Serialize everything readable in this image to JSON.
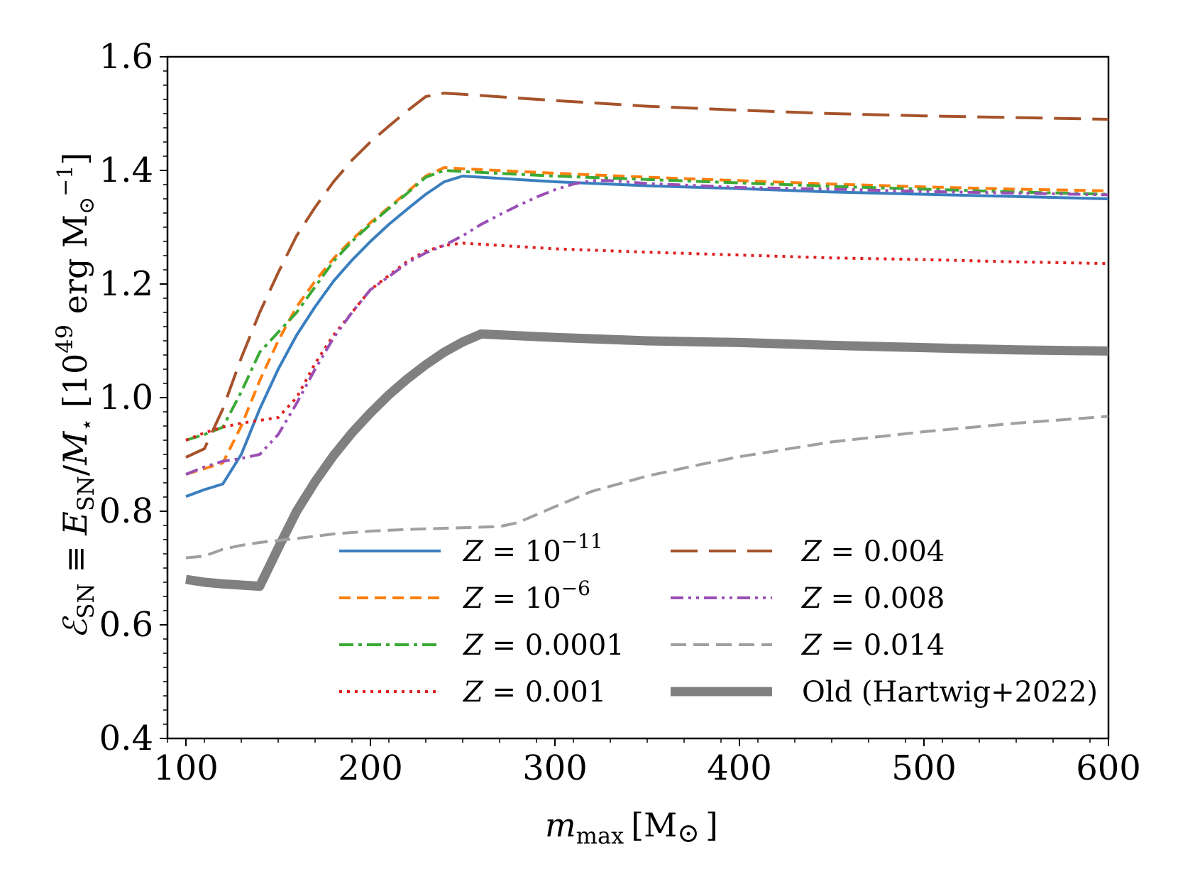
{
  "chart_data": {
    "type": "line",
    "title": "",
    "xlabel": "m_max [M⊙]",
    "xlabel_parts": {
      "var": "m",
      "sub": "max",
      "unit": "[M",
      "sun": "⊙",
      "close": "]"
    },
    "ylabel": "ℰ_SN ≡ E_SN/M⋆ [10^49 erg M⊙^−1]",
    "ylabel_parts": {
      "script_e": "ℰ",
      "sub1": "SN",
      "equiv": " ≡ ",
      "var_e": "E",
      "sub2": "SN",
      "slash": "/",
      "var_m": "M",
      "star": "⋆",
      "unit_open": "  [10",
      "exp49": "49",
      "unit_mid": " erg M",
      "sun": "⊙",
      "exp_neg1": "−1",
      "unit_close": "]"
    },
    "xlim": [
      90,
      600
    ],
    "ylim": [
      0.4,
      1.6
    ],
    "xticks": [
      100,
      200,
      300,
      400,
      500,
      600
    ],
    "xtick_labels": [
      "100",
      "200",
      "300",
      "400",
      "500",
      "600"
    ],
    "yticks": [
      0.4,
      0.6,
      0.8,
      1.0,
      1.2,
      1.4,
      1.6
    ],
    "ytick_labels": [
      "0.4",
      "0.6",
      "0.8",
      "1.0",
      "1.2",
      "1.4",
      "1.6"
    ],
    "grid": false,
    "legend_position": "lower-center",
    "series": [
      {
        "name": "Z = 10^−11",
        "label": {
          "z": "Z",
          "eq": " = ",
          "base": "10",
          "exp": "−11",
          "rest": ""
        },
        "color": "#3a7ebf",
        "style": "solid",
        "x": [
          100,
          110,
          120,
          130,
          140,
          150,
          160,
          170,
          180,
          190,
          200,
          210,
          220,
          230,
          240,
          250,
          300,
          350,
          400,
          450,
          500,
          550,
          600
        ],
        "y": [
          0.826,
          0.838,
          0.848,
          0.9,
          0.98,
          1.05,
          1.11,
          1.16,
          1.205,
          1.242,
          1.275,
          1.305,
          1.332,
          1.358,
          1.38,
          1.39,
          1.38,
          1.373,
          1.368,
          1.362,
          1.358,
          1.354,
          1.35
        ]
      },
      {
        "name": "Z = 10^−6",
        "label": {
          "z": "Z",
          "eq": " = ",
          "base": "10",
          "exp": "−6",
          "rest": ""
        },
        "color": "#ff7f0e",
        "style": "dashed",
        "x": [
          100,
          110,
          120,
          130,
          140,
          150,
          160,
          170,
          180,
          190,
          200,
          210,
          220,
          230,
          240,
          250,
          300,
          350,
          400,
          450,
          500,
          550,
          600
        ],
        "y": [
          0.865,
          0.875,
          0.885,
          0.95,
          1.03,
          1.1,
          1.16,
          1.205,
          1.245,
          1.278,
          1.308,
          1.335,
          1.362,
          1.39,
          1.405,
          1.403,
          1.395,
          1.388,
          1.382,
          1.376,
          1.371,
          1.367,
          1.364
        ]
      },
      {
        "name": "Z = 0.0001",
        "label": {
          "z": "Z",
          "eq": " = ",
          "base": "0.0001",
          "exp": "",
          "rest": ""
        },
        "color": "#3aaa35",
        "style": "dashdot",
        "x": [
          100,
          110,
          120,
          130,
          140,
          150,
          160,
          170,
          180,
          190,
          200,
          210,
          220,
          230,
          240,
          250,
          300,
          350,
          400,
          450,
          500,
          550,
          600
        ],
        "y": [
          0.925,
          0.935,
          0.948,
          1.01,
          1.08,
          1.115,
          1.15,
          1.195,
          1.24,
          1.275,
          1.305,
          1.333,
          1.36,
          1.388,
          1.4,
          1.398,
          1.39,
          1.384,
          1.378,
          1.372,
          1.367,
          1.362,
          1.358
        ]
      },
      {
        "name": "Z = 0.001",
        "label": {
          "z": "Z",
          "eq": " = ",
          "base": "0.001",
          "exp": "",
          "rest": ""
        },
        "color": "#e02020",
        "style": "dotted",
        "x": [
          100,
          110,
          120,
          130,
          140,
          150,
          160,
          170,
          180,
          190,
          200,
          210,
          220,
          230,
          240,
          250,
          300,
          350,
          400,
          450,
          500,
          550,
          600
        ],
        "y": [
          0.925,
          0.938,
          0.948,
          0.955,
          0.96,
          0.965,
          1.0,
          1.06,
          1.11,
          1.15,
          1.19,
          1.215,
          1.24,
          1.258,
          1.268,
          1.272,
          1.262,
          1.256,
          1.251,
          1.246,
          1.243,
          1.239,
          1.236
        ]
      },
      {
        "name": "Z = 0.004",
        "label": {
          "z": "Z",
          "eq": " = ",
          "base": "0.004",
          "exp": "",
          "rest": ""
        },
        "color": "#a6532b",
        "style": "longdash",
        "x": [
          100,
          110,
          120,
          130,
          140,
          150,
          160,
          170,
          180,
          190,
          200,
          210,
          220,
          230,
          240,
          250,
          300,
          350,
          400,
          450,
          500,
          550,
          600
        ],
        "y": [
          0.895,
          0.91,
          0.98,
          1.07,
          1.15,
          1.22,
          1.285,
          1.335,
          1.38,
          1.418,
          1.45,
          1.478,
          1.505,
          1.53,
          1.536,
          1.534,
          1.523,
          1.513,
          1.506,
          1.5,
          1.496,
          1.493,
          1.49
        ]
      },
      {
        "name": "Z = 0.008",
        "label": {
          "z": "Z",
          "eq": " = ",
          "base": "0.008",
          "exp": "",
          "rest": ""
        },
        "color": "#9a4fb5",
        "style": "dashdotdot",
        "x": [
          100,
          110,
          120,
          130,
          140,
          150,
          160,
          170,
          180,
          190,
          200,
          210,
          220,
          230,
          240,
          250,
          260,
          270,
          280,
          290,
          300,
          310,
          320,
          330,
          350,
          400,
          450,
          500,
          550,
          600
        ],
        "y": [
          0.865,
          0.878,
          0.888,
          0.893,
          0.9,
          0.935,
          0.99,
          1.05,
          1.105,
          1.15,
          1.19,
          1.213,
          1.237,
          1.255,
          1.268,
          1.285,
          1.305,
          1.322,
          1.338,
          1.353,
          1.366,
          1.376,
          1.382,
          1.382,
          1.377,
          1.37,
          1.367,
          1.363,
          1.36,
          1.357
        ]
      },
      {
        "name": "Z = 0.014",
        "label": {
          "z": "Z",
          "eq": " = ",
          "base": "0.014",
          "exp": "",
          "rest": ""
        },
        "color": "#a0a0a0",
        "style": "dashed-gray",
        "x": [
          100,
          110,
          120,
          130,
          140,
          160,
          180,
          200,
          220,
          240,
          260,
          270,
          280,
          300,
          320,
          350,
          380,
          400,
          450,
          500,
          550,
          600
        ],
        "y": [
          0.718,
          0.721,
          0.733,
          0.74,
          0.745,
          0.752,
          0.76,
          0.765,
          0.768,
          0.77,
          0.772,
          0.773,
          0.78,
          0.808,
          0.835,
          0.862,
          0.883,
          0.896,
          0.922,
          0.94,
          0.955,
          0.967
        ]
      },
      {
        "name": "Old (Hartwig+2022)",
        "label": {
          "z": "",
          "eq": "",
          "base": "",
          "exp": "",
          "rest": "Old (Hartwig+2022)"
        },
        "color": "#808080",
        "style": "thick",
        "x": [
          100,
          110,
          120,
          130,
          140,
          150,
          160,
          170,
          180,
          190,
          200,
          210,
          220,
          230,
          240,
          250,
          260,
          300,
          350,
          400,
          450,
          500,
          550,
          600
        ],
        "y": [
          0.68,
          0.675,
          0.672,
          0.67,
          0.668,
          0.735,
          0.8,
          0.852,
          0.898,
          0.938,
          0.973,
          1.005,
          1.033,
          1.058,
          1.08,
          1.098,
          1.112,
          1.106,
          1.1,
          1.097,
          1.092,
          1.088,
          1.084,
          1.082
        ]
      }
    ]
  }
}
